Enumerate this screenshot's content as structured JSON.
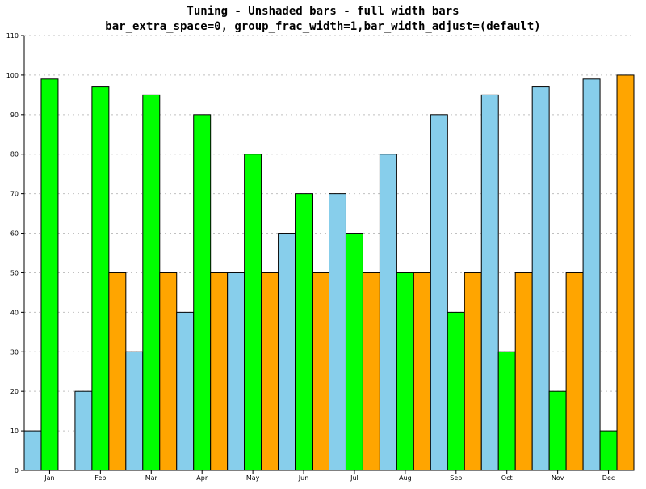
{
  "chart_data": {
    "type": "bar",
    "title": "Tuning - Unshaded bars - full width bars",
    "subtitle": "bar_extra_space=0, group_frac_width=1,bar_width_adjust=(default)",
    "xlabel": "",
    "ylabel": "",
    "categories": [
      "Jan",
      "Feb",
      "Mar",
      "Apr",
      "May",
      "Jun",
      "Jul",
      "Aug",
      "Sep",
      "Oct",
      "Nov",
      "Dec"
    ],
    "series": [
      {
        "color": "#87ceeb",
        "values": [
          10,
          20,
          30,
          40,
          50,
          60,
          70,
          80,
          90,
          95,
          97,
          99
        ]
      },
      {
        "color": "#00ff00",
        "values": [
          99,
          97,
          95,
          90,
          80,
          70,
          60,
          50,
          40,
          30,
          20,
          10
        ]
      },
      {
        "color": "#ffa500",
        "values": [
          0,
          50,
          50,
          50,
          50,
          50,
          50,
          50,
          50,
          50,
          50,
          100
        ]
      }
    ],
    "ylim": [
      0,
      110
    ],
    "yticks": [
      0,
      10,
      20,
      30,
      40,
      50,
      60,
      70,
      80,
      90,
      100,
      110
    ],
    "grid": true,
    "legend": "none"
  }
}
